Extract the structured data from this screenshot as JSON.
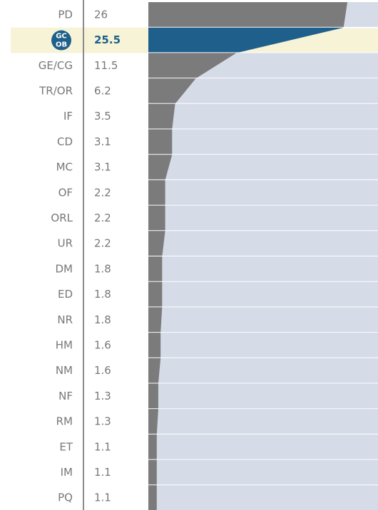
{
  "chart_data": {
    "type": "bar",
    "categories": [
      "PD",
      null,
      "GE/CG",
      "TR/OR",
      "IF",
      "CD",
      "MC",
      "OF",
      "ORL",
      "UR",
      "DM",
      "ED",
      "NR",
      "HM",
      "NM",
      "NF",
      "RM",
      "ET",
      "IM",
      "PQ"
    ],
    "values": [
      26,
      25.5,
      11.5,
      6.2,
      3.5,
      3.1,
      3.1,
      2.2,
      2.2,
      2.2,
      1.8,
      1.8,
      1.8,
      1.6,
      1.6,
      1.3,
      1.3,
      1.1,
      1.1,
      1.1
    ],
    "color": "#7b7b7b",
    "highlight_color": "#1f5f8b",
    "highlight": {
      "index": 1,
      "badge": [
        "GC",
        "OB"
      ]
    },
    "xlim": [
      0,
      30
    ]
  }
}
